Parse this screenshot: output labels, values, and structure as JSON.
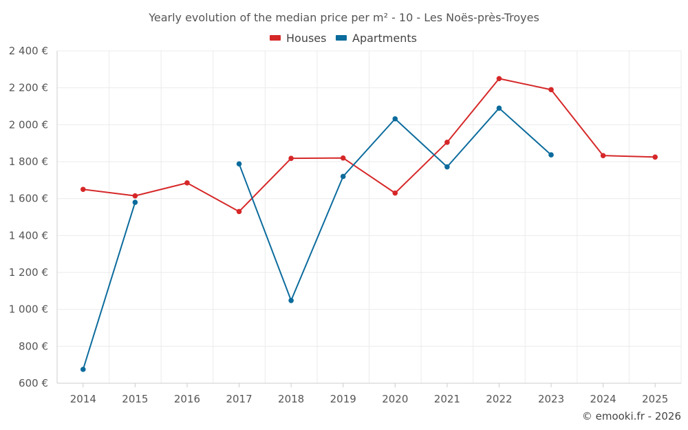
{
  "chart_data": {
    "type": "line",
    "title": "Yearly evolution of the median price per m² - 10 - Les Noës-près-Troyes",
    "x": [
      "2014",
      "2015",
      "2016",
      "2017",
      "2018",
      "2019",
      "2020",
      "2021",
      "2022",
      "2023",
      "2024",
      "2025"
    ],
    "y_ticks": [
      "600 €",
      "800 €",
      "1 000 €",
      "1 200 €",
      "1 400 €",
      "1 600 €",
      "1 800 €",
      "2 000 €",
      "2 200 €",
      "2 400 €"
    ],
    "ylim": [
      600,
      2400
    ],
    "grid": true,
    "legend_position": "top-center",
    "series": [
      {
        "name": "Houses",
        "color": "#d62728",
        "values": [
          1650,
          1615,
          1685,
          1530,
          1818,
          1820,
          1630,
          1905,
          2250,
          2190,
          1833,
          1825
        ]
      },
      {
        "name": "Apartments",
        "color": "#0b6b9c",
        "values": [
          675,
          1580,
          null,
          1788,
          1048,
          1720,
          2032,
          1772,
          2090,
          1837,
          null,
          null
        ]
      }
    ],
    "credit": "© emooki.fr - 2026"
  }
}
